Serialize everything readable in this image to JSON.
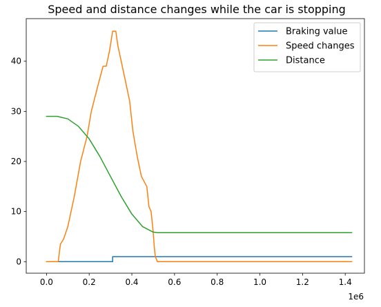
{
  "chart_data": {
    "type": "line",
    "title": "Speed and distance changes while the car is stopping",
    "xlabel": "",
    "ylabel": "",
    "x_offset_label": "1e6",
    "xlim": [
      -95000,
      1490000
    ],
    "ylim": [
      -2.3,
      48.5
    ],
    "xticks": [
      0,
      200000,
      400000,
      600000,
      800000,
      1000000,
      1200000,
      1400000
    ],
    "xtick_labels": [
      "0.0",
      "0.2",
      "0.4",
      "0.6",
      "0.8",
      "1.0",
      "1.2",
      "1.4"
    ],
    "yticks": [
      0,
      10,
      20,
      30,
      40
    ],
    "ytick_labels": [
      "0",
      "10",
      "20",
      "30",
      "40"
    ],
    "grid": false,
    "legend_position": "top-right",
    "series": [
      {
        "name": "Braking value",
        "color": "#1f77b4",
        "x": [
          0,
          310000,
          310000,
          1430000
        ],
        "y": [
          0,
          0,
          1,
          1
        ]
      },
      {
        "name": "Speed changes",
        "color": "#ff7f0e",
        "x": [
          0,
          55000,
          65000,
          80000,
          100000,
          130000,
          160000,
          190000,
          210000,
          240000,
          265000,
          280000,
          295000,
          310000,
          325000,
          335000,
          350000,
          370000,
          390000,
          405000,
          425000,
          445000,
          470000,
          480000,
          490000,
          500000,
          505000,
          510000,
          520000,
          1430000
        ],
        "y": [
          0,
          0,
          3.5,
          4.5,
          7,
          13,
          20,
          25,
          30,
          35,
          39,
          39,
          42,
          46,
          46,
          43,
          40,
          36,
          32,
          26,
          21,
          17,
          15,
          11,
          10,
          6,
          3,
          1,
          0,
          0
        ]
      },
      {
        "name": "Distance",
        "color": "#2ca02c",
        "x": [
          0,
          50000,
          100000,
          150000,
          200000,
          250000,
          300000,
          350000,
          400000,
          450000,
          500000,
          520000,
          1430000
        ],
        "y": [
          29,
          29,
          28.5,
          27,
          24.5,
          21,
          17,
          13,
          9.5,
          7,
          5.9,
          5.8,
          5.8
        ]
      }
    ]
  }
}
